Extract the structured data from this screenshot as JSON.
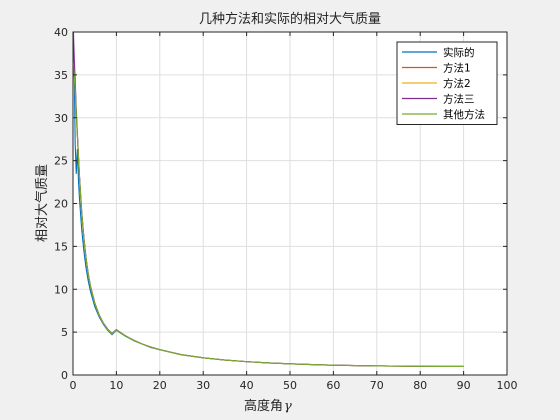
{
  "chart_data": {
    "type": "line",
    "title": "几种方法和实际的相对大气质量",
    "xlabel": "高度角",
    "xlabel_symbol": "γ",
    "ylabel": "相对大气质量",
    "xlim": [
      0,
      100
    ],
    "ylim": [
      0,
      40
    ],
    "xticks": [
      "0",
      "10",
      "20",
      "30",
      "40",
      "50",
      "60",
      "70",
      "80",
      "90",
      "100"
    ],
    "yticks": [
      "0",
      "5",
      "10",
      "15",
      "20",
      "25",
      "30",
      "35",
      "40"
    ],
    "grid": true,
    "legend_position": "top-right",
    "x": [
      0.1,
      0.3,
      0.5,
      0.75,
      1,
      1.25,
      1.5,
      2,
      2.5,
      3,
      3.5,
      4,
      5,
      6,
      7,
      8,
      9,
      10,
      12,
      14,
      16,
      18,
      20,
      25,
      30,
      35,
      40,
      45,
      50,
      55,
      60,
      65,
      70,
      75,
      80,
      85,
      90
    ],
    "series": [
      {
        "name": "实际的",
        "color": "#0072bd",
        "values": [
          38.1,
          35.2,
          27.0,
          23.5,
          26.3,
          22.8,
          20.5,
          17.0,
          14.5,
          12.5,
          11.0,
          9.8,
          8.0,
          6.8,
          5.9,
          5.2,
          4.7,
          5.2,
          4.55,
          4.0,
          3.6,
          3.2,
          2.95,
          2.35,
          2.0,
          1.75,
          1.55,
          1.41,
          1.3,
          1.22,
          1.15,
          1.1,
          1.06,
          1.035,
          1.015,
          1.004,
          1.0
        ]
      },
      {
        "name": "方法1",
        "color": "#d95319",
        "values": [
          37.5,
          35.0,
          33.5,
          30.5,
          28.0,
          25.5,
          23.0,
          19.0,
          16.0,
          13.6,
          11.8,
          10.4,
          8.4,
          7.0,
          6.0,
          5.3,
          4.8,
          5.25,
          4.6,
          4.05,
          3.6,
          3.25,
          2.95,
          2.37,
          2.0,
          1.74,
          1.56,
          1.41,
          1.3,
          1.22,
          1.15,
          1.1,
          1.06,
          1.035,
          1.015,
          1.004,
          1.0
        ]
      },
      {
        "name": "方法2",
        "color": "#edb120",
        "values": [
          36.5,
          35.0,
          33.5,
          30.5,
          28.0,
          25.5,
          23.0,
          19.0,
          16.0,
          13.6,
          11.8,
          10.4,
          8.4,
          7.0,
          6.0,
          5.3,
          4.8,
          5.25,
          4.6,
          4.05,
          3.6,
          3.25,
          2.95,
          2.37,
          2.0,
          1.74,
          1.56,
          1.41,
          1.3,
          1.22,
          1.15,
          1.1,
          1.06,
          1.035,
          1.015,
          1.004,
          1.0
        ]
      },
      {
        "name": "方法三",
        "color": "#7e2f8e",
        "values": [
          40.0,
          36.8,
          34.5,
          31.0,
          28.3,
          25.7,
          23.2,
          19.1,
          16.1,
          13.7,
          11.85,
          10.45,
          8.45,
          7.05,
          6.05,
          5.35,
          4.85,
          5.3,
          4.6,
          4.05,
          3.6,
          3.25,
          2.95,
          2.37,
          2.0,
          1.74,
          1.56,
          1.41,
          1.3,
          1.22,
          1.15,
          1.1,
          1.06,
          1.035,
          1.015,
          1.004,
          1.0
        ]
      },
      {
        "name": "其他方法",
        "color": "#77ac30",
        "values": [
          36.0,
          34.8,
          33.5,
          30.5,
          28.0,
          25.5,
          23.0,
          19.0,
          16.0,
          13.6,
          11.8,
          10.4,
          8.4,
          7.0,
          6.0,
          5.3,
          4.8,
          5.25,
          4.6,
          4.05,
          3.6,
          3.25,
          2.95,
          2.37,
          2.0,
          1.74,
          1.56,
          1.41,
          1.3,
          1.22,
          1.15,
          1.1,
          1.06,
          1.035,
          1.015,
          1.004,
          1.0
        ]
      }
    ]
  }
}
